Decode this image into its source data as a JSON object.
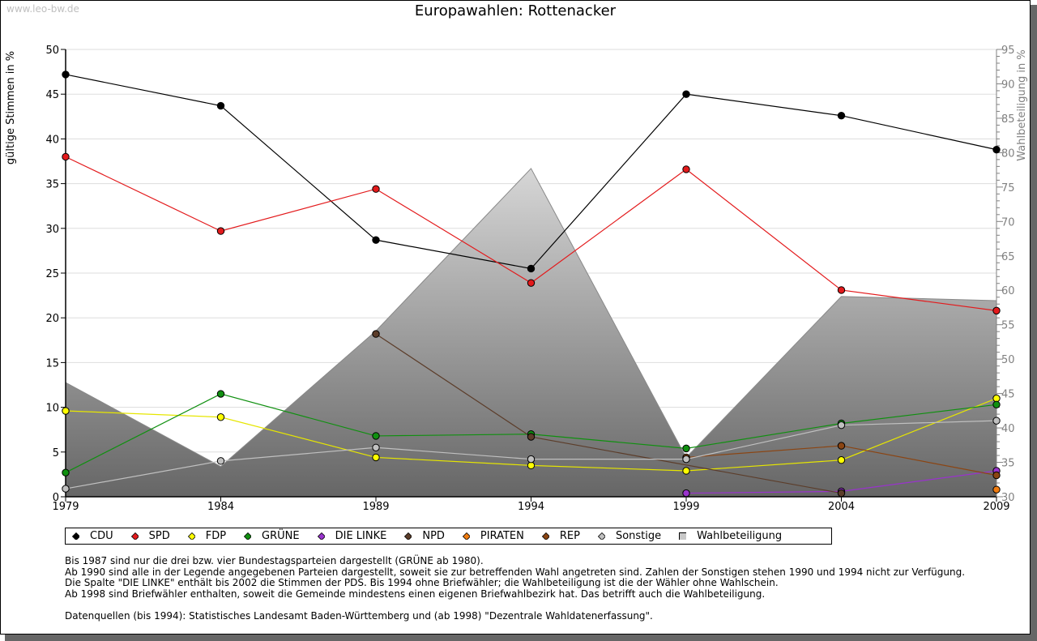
{
  "watermark": "www.leo-bw.de",
  "title": "Europawahlen: Rottenacker",
  "notes": [
    "Bis 1987 sind nur die drei bzw. vier Bundestagsparteien dargestellt (GRÜNE ab 1980).",
    "Ab 1990 sind alle in der Legende angegebenen Parteien dargestellt, soweit sie zur betreffenden Wahl angetreten sind. Zahlen der Sonstigen stehen 1990 und 1994 nicht zur Verfügung.",
    "Die Spalte \"DIE LINKE\" enthält bis 2002 die Stimmen der PDS. Bis 1994 ohne Briefwähler; die Wahlbeteiligung ist die der Wähler ohne Wahlschein.",
    "Ab 1998 sind Briefwähler enthalten, soweit die Gemeinde mindestens einen eigenen Briefwahlbezirk hat. Das betrifft auch die Wahlbeteiligung."
  ],
  "source": "Datenquellen (bis 1994): Statistisches Landesamt Baden-Württemberg und (ab 1998) \"Dezentrale Wahldatenerfassung\".",
  "chart_data": {
    "type": "line",
    "title": "Europawahlen: Rottenacker",
    "xlabel": "",
    "ylabel": "gültige Stimmen in %",
    "y2label": "Wahlbeteiligung in %",
    "x": [
      1979,
      1984,
      1989,
      1994,
      1999,
      2004,
      2009
    ],
    "ylim": [
      0,
      50
    ],
    "y2lim": [
      30,
      95
    ],
    "yticks": [
      0,
      5,
      10,
      15,
      20,
      25,
      30,
      35,
      40,
      45,
      50
    ],
    "y2ticks": [
      30,
      35,
      40,
      45,
      50,
      55,
      60,
      65,
      70,
      75,
      80,
      85,
      90,
      95
    ],
    "grid": true,
    "legend_position": "bottom",
    "series": [
      {
        "name": "CDU",
        "color": "#000000",
        "values": [
          47.2,
          43.7,
          28.7,
          25.5,
          45.0,
          42.6,
          38.8
        ]
      },
      {
        "name": "SPD",
        "color": "#e31a1c",
        "values": [
          38.0,
          29.7,
          34.4,
          23.9,
          36.6,
          23.1,
          20.8
        ]
      },
      {
        "name": "FDP",
        "color": "#ffff00",
        "line_color": "#e6e600",
        "values": [
          9.6,
          8.9,
          4.4,
          3.5,
          2.9,
          4.1,
          11.0
        ]
      },
      {
        "name": "GRÜNE",
        "color": "#109010",
        "values": [
          2.7,
          11.5,
          6.8,
          7.0,
          5.4,
          8.2,
          10.3
        ]
      },
      {
        "name": "DIE LINKE",
        "color": "#9933cc",
        "values": [
          null,
          null,
          null,
          null,
          0.4,
          0.6,
          2.9
        ]
      },
      {
        "name": "NPD",
        "color": "#5c3d2a",
        "values": [
          null,
          null,
          18.2,
          6.7,
          null,
          0.4,
          null
        ]
      },
      {
        "name": "PIRATEN",
        "color": "#f07c10",
        "values": [
          null,
          null,
          null,
          null,
          null,
          null,
          0.8
        ]
      },
      {
        "name": "REP",
        "color": "#8b4513",
        "values": [
          null,
          null,
          null,
          null,
          4.4,
          5.7,
          2.4
        ]
      },
      {
        "name": "Sonstige",
        "color": "#c0c0c0",
        "values": [
          0.9,
          4.0,
          5.5,
          4.2,
          4.2,
          8.0,
          8.5
        ]
      }
    ],
    "area_series": {
      "name": "Wahlbeteiligung",
      "axis": "right",
      "values": [
        46.6,
        34.4,
        54.1,
        77.7,
        35.7,
        59.1,
        58.5
      ]
    }
  }
}
